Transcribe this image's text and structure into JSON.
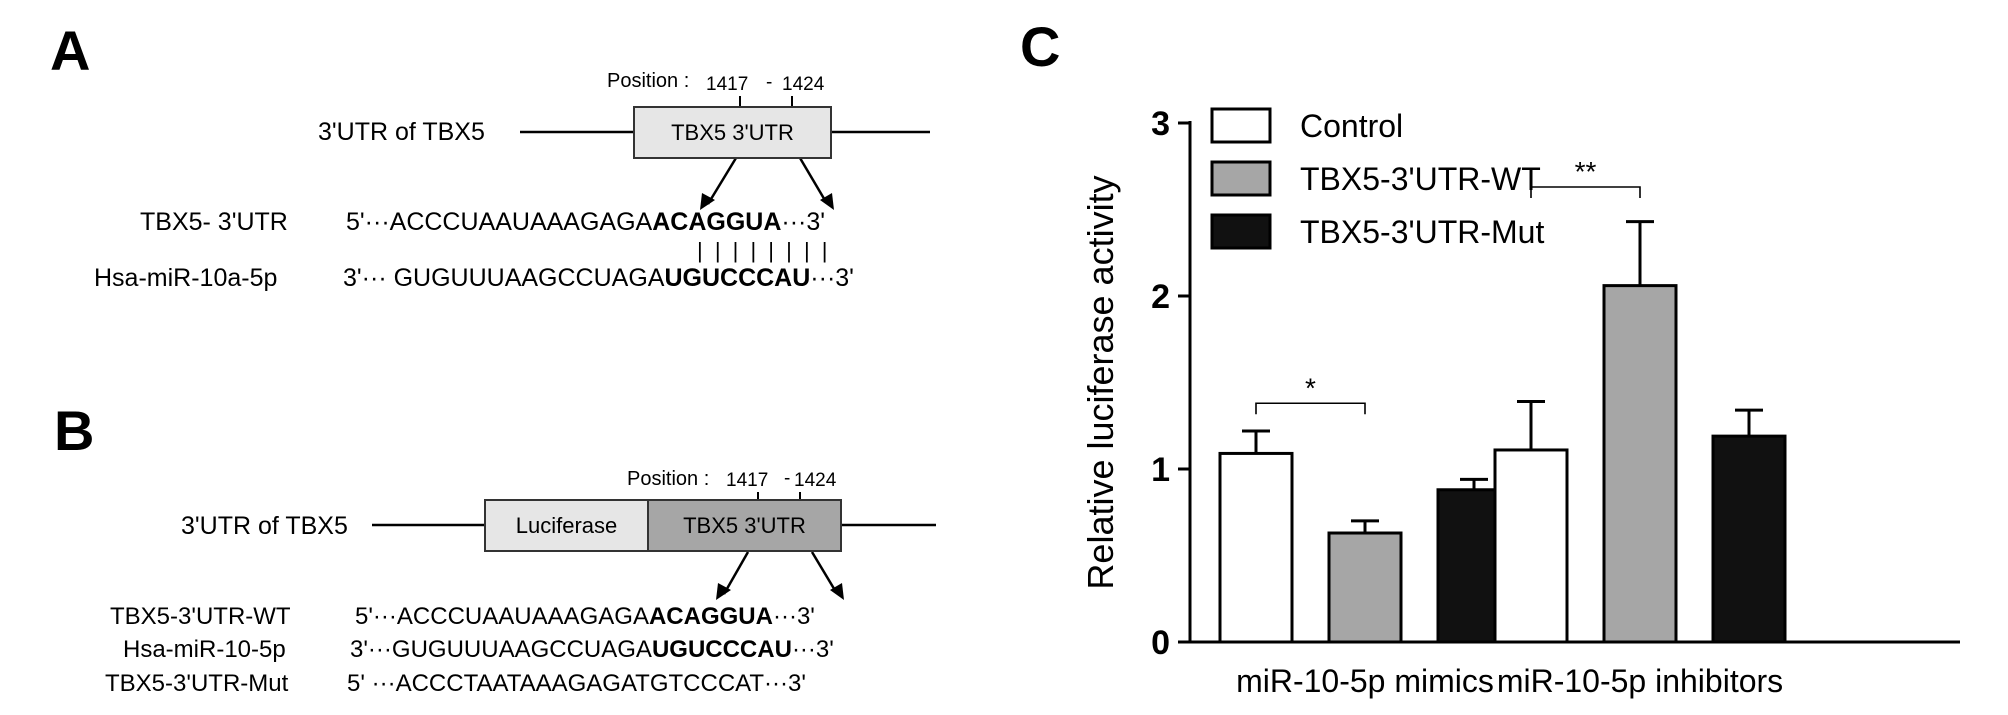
{
  "panelA": {
    "letter": "A",
    "position_label": "Position :",
    "pos_start": "1417",
    "pos_sep": "-",
    "pos_end": "1424",
    "utr_label": "3'UTR of TBX5",
    "box_label": "TBX5 3'UTR",
    "row1_label": "TBX5- 3'UTR",
    "row1_prefix": "5'···ACCCUAAUAAAGAGA",
    "row1_bold": "ACAGGUA",
    "row1_suffix": "···3'",
    "pairing": "| | | | | | | |",
    "row2_label": "Hsa-miR-10a-5p",
    "row2_prefix": "3'··· GUGUUUAAGCCUAGA",
    "row2_bold": "UGUCCCAU",
    "row2_suffix": "···3'"
  },
  "panelB": {
    "letter": "B",
    "position_label": "Position :",
    "pos_start": "1417",
    "pos_sep": "-",
    "pos_end": "1424",
    "utr_label": "3'UTR of TBX5",
    "luciferase_label": "Luciferase",
    "box_label": "TBX5 3'UTR",
    "row1_label": "TBX5-3'UTR-WT",
    "row1_prefix": "5'···ACCCUAAUAAAGAGA",
    "row1_bold": "ACAGGUA",
    "row1_suffix": "···3'",
    "row2_label": "Hsa-miR-10-5p",
    "row2_prefix": "3'···GUGUUUAAGCCUAGA",
    "row2_bold": "UGUCCCAU",
    "row2_suffix": "···3'",
    "row3_label": "TBX5-3'UTR-Mut",
    "row3_seq": "5' ···ACCCTAATAAAGAGATGTCCCAT···3'"
  },
  "panelC": {
    "letter": "C",
    "significance": [
      "*",
      "**"
    ]
  },
  "colors": {
    "control": "#ffffff",
    "wt": "#a6a6a6",
    "mut": "#111111",
    "box_light": "#e6e6e6",
    "box_dark": "#a6a6a6"
  },
  "chart_data": {
    "type": "bar",
    "title": "",
    "xlabel": "",
    "ylabel": "Relative luciferase activity",
    "ylim": [
      0,
      3
    ],
    "yticks": [
      "0",
      "1",
      "2",
      "3"
    ],
    "categories": [
      "miR-10-5p mimics",
      "miR-10-5p inhibitors"
    ],
    "legend_position": "top-left",
    "grid": false,
    "series": [
      {
        "name": "Control",
        "values": [
          1.09,
          1.11
        ],
        "errors": [
          0.13,
          0.28
        ]
      },
      {
        "name": "TBX5-3'UTR-WT",
        "values": [
          0.63,
          2.06
        ],
        "errors": [
          0.07,
          0.37
        ]
      },
      {
        "name": "TBX5-3'UTR-Mut",
        "values": [
          0.88,
          1.19
        ],
        "errors": [
          0.06,
          0.15
        ]
      }
    ]
  }
}
